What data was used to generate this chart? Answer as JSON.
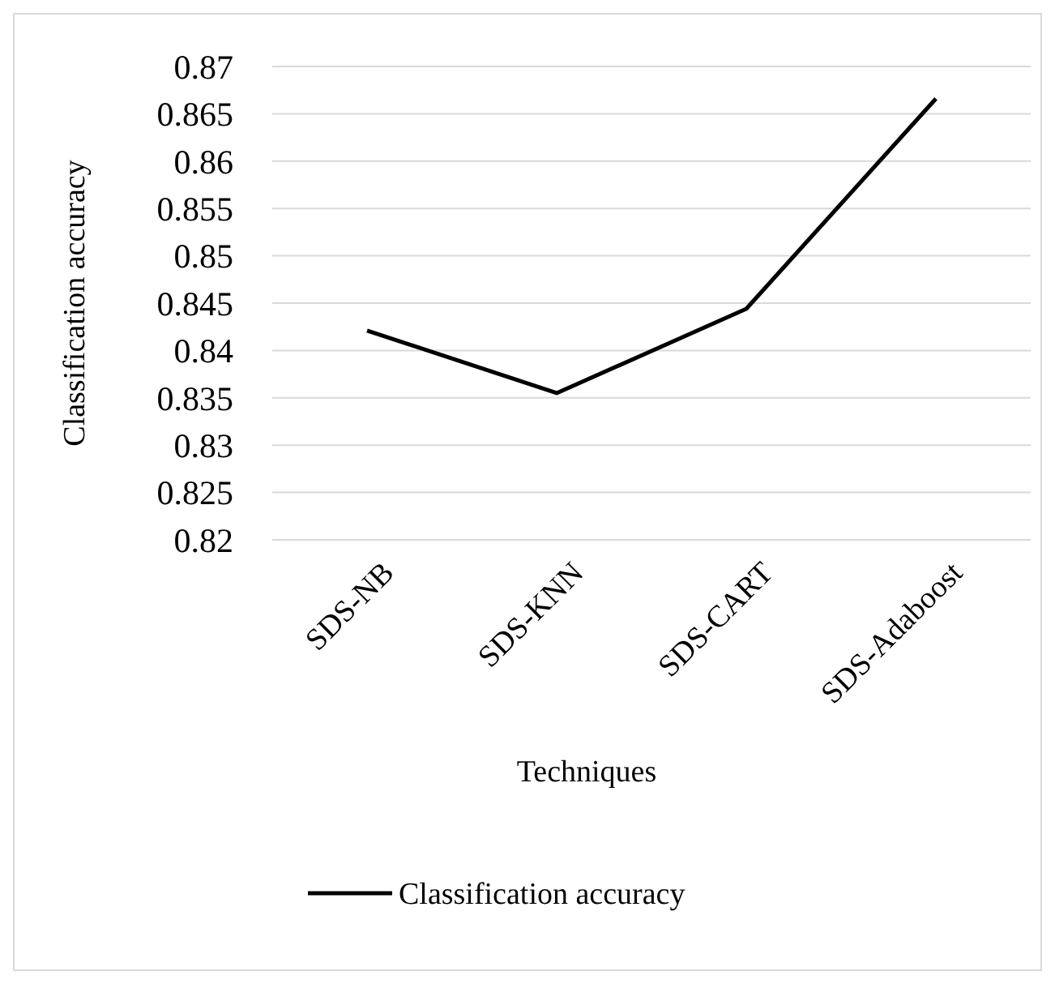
{
  "chart_data": {
    "type": "line",
    "xlabel": "Techniques",
    "ylabel": "Classification accuracy",
    "categories": [
      "SDS-NB",
      "SDS-KNN",
      "SDS-CART",
      "SDS-Adaboost"
    ],
    "series": [
      {
        "name": "Classification accuracy",
        "color": "#000000",
        "values": [
          0.8421,
          0.8355,
          0.8444,
          0.8666
        ]
      }
    ],
    "ylim": [
      0.82,
      0.87
    ],
    "yticks": [
      0.82,
      0.825,
      0.83,
      0.835,
      0.84,
      0.845,
      0.85,
      0.855,
      0.86,
      0.865,
      0.87
    ],
    "grid": "y",
    "legend": "bottom",
    "marker": "none",
    "line_style": "solid"
  }
}
